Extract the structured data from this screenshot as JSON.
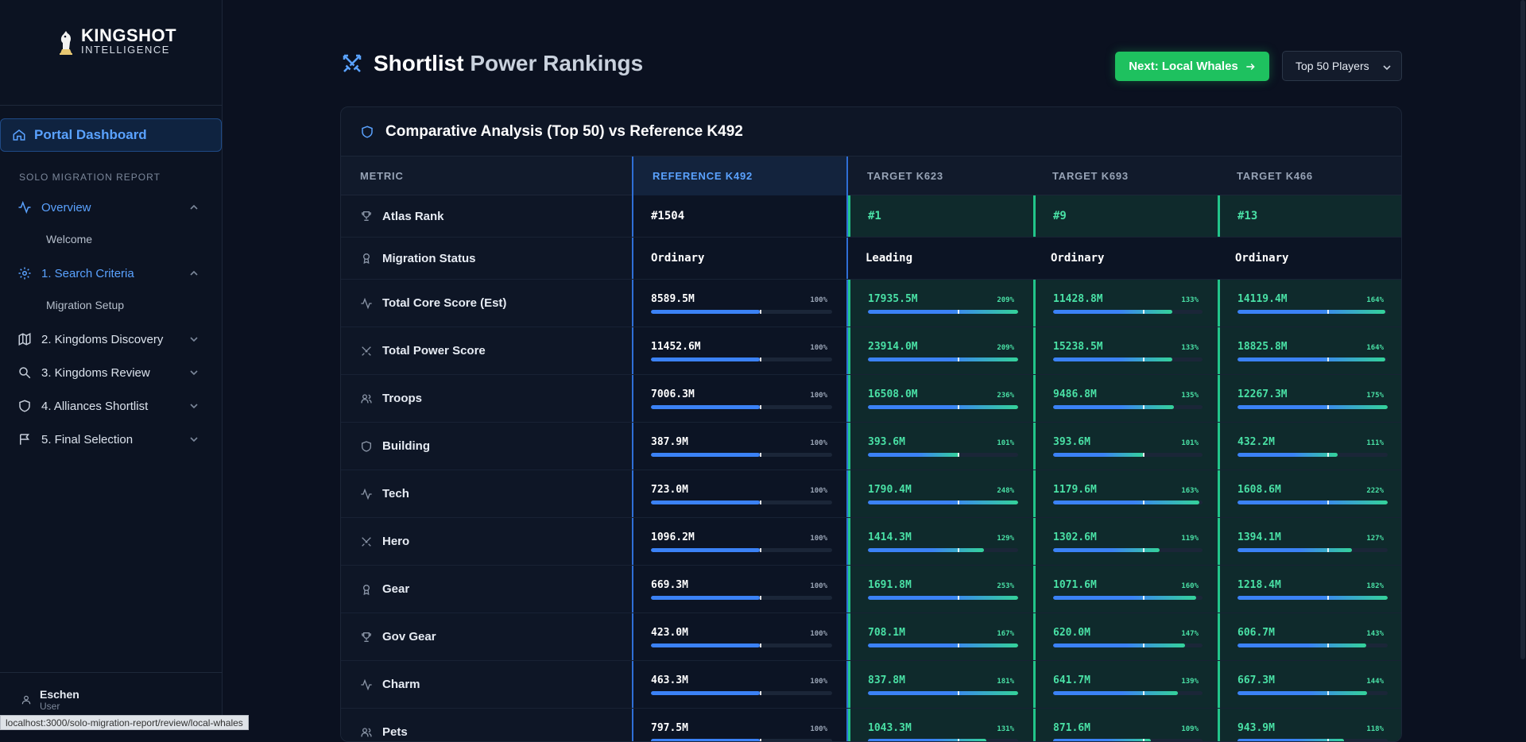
{
  "brand": {
    "line1": "KINGSHOT",
    "line2": "INTELLIGENCE"
  },
  "sidebar": {
    "portal_label": "Portal Dashboard",
    "section_label": "SOLO MIGRATION REPORT",
    "items": [
      {
        "label": "Overview",
        "sub": "Welcome",
        "icon": "activity-icon",
        "active": true,
        "expanded": true
      },
      {
        "label": "1. Search Criteria",
        "sub": "Migration Setup",
        "icon": "gear-icon",
        "active": true,
        "expanded": true
      },
      {
        "label": "2. Kingdoms Discovery",
        "icon": "map-icon"
      },
      {
        "label": "3. Kingdoms Review",
        "icon": "search-icon"
      },
      {
        "label": "4. Alliances Shortlist",
        "icon": "shield-icon"
      },
      {
        "label": "5. Final Selection",
        "icon": "flag-icon"
      }
    ],
    "user": {
      "name": "Eschen",
      "role": "User"
    }
  },
  "status_url": "localhost:3000/solo-migration-report/review/local-whales",
  "header": {
    "title_main": "Shortlist",
    "title_rest": "Power Rankings",
    "next_button": "Next: Local Whales",
    "select_value": "Top 50 Players"
  },
  "card": {
    "title": "Comparative Analysis (Top 50) vs Reference K492",
    "columns": [
      "METRIC",
      "REFERENCE K492",
      "TARGET K623",
      "TARGET K693",
      "TARGET K466"
    ],
    "rows": [
      {
        "metric": "Atlas Rank",
        "icon": "trophy-icon",
        "kind": "text",
        "ref": "#1504",
        "targets": [
          {
            "v": "#1",
            "hi": true
          },
          {
            "v": "#9",
            "hi": true
          },
          {
            "v": "#13",
            "hi": true
          }
        ]
      },
      {
        "metric": "Migration Status",
        "icon": "medal-icon",
        "kind": "text",
        "ref": "Ordinary",
        "targets": [
          {
            "v": "Leading",
            "hi": false
          },
          {
            "v": "Ordinary",
            "hi": false
          },
          {
            "v": "Ordinary",
            "hi": false
          }
        ]
      },
      {
        "metric": "Total Core Score (Est)",
        "icon": "activity-icon",
        "kind": "bar",
        "ref": {
          "v": "8589.5M",
          "p": "100%",
          "r": 1.0
        },
        "targets": [
          {
            "v": "17935.5M",
            "p": "209%",
            "r": 2.09
          },
          {
            "v": "11428.8M",
            "p": "133%",
            "r": 1.33
          },
          {
            "v": "14119.4M",
            "p": "164%",
            "r": 1.64
          }
        ]
      },
      {
        "metric": "Total Power Score",
        "icon": "swords-icon",
        "kind": "bar",
        "ref": {
          "v": "11452.6M",
          "p": "100%",
          "r": 1.0
        },
        "targets": [
          {
            "v": "23914.0M",
            "p": "209%",
            "r": 2.09
          },
          {
            "v": "15238.5M",
            "p": "133%",
            "r": 1.33
          },
          {
            "v": "18825.8M",
            "p": "164%",
            "r": 1.64
          }
        ]
      },
      {
        "metric": "Troops",
        "icon": "users-icon",
        "kind": "bar",
        "ref": {
          "v": "7006.3M",
          "p": "100%",
          "r": 1.0
        },
        "targets": [
          {
            "v": "16508.0M",
            "p": "236%",
            "r": 2.36
          },
          {
            "v": "9486.8M",
            "p": "135%",
            "r": 1.35
          },
          {
            "v": "12267.3M",
            "p": "175%",
            "r": 1.75
          }
        ]
      },
      {
        "metric": "Building",
        "icon": "shield-icon",
        "kind": "bar",
        "ref": {
          "v": "387.9M",
          "p": "100%",
          "r": 1.0
        },
        "targets": [
          {
            "v": "393.6M",
            "p": "101%",
            "r": 1.01
          },
          {
            "v": "393.6M",
            "p": "101%",
            "r": 1.01
          },
          {
            "v": "432.2M",
            "p": "111%",
            "r": 1.11
          }
        ]
      },
      {
        "metric": "Tech",
        "icon": "activity-icon",
        "kind": "bar",
        "ref": {
          "v": "723.0M",
          "p": "100%",
          "r": 1.0
        },
        "targets": [
          {
            "v": "1790.4M",
            "p": "248%",
            "r": 2.48
          },
          {
            "v": "1179.6M",
            "p": "163%",
            "r": 1.63
          },
          {
            "v": "1608.6M",
            "p": "222%",
            "r": 2.22
          }
        ]
      },
      {
        "metric": "Hero",
        "icon": "swords-icon",
        "kind": "bar",
        "ref": {
          "v": "1096.2M",
          "p": "100%",
          "r": 1.0
        },
        "targets": [
          {
            "v": "1414.3M",
            "p": "129%",
            "r": 1.29
          },
          {
            "v": "1302.6M",
            "p": "119%",
            "r": 1.19
          },
          {
            "v": "1394.1M",
            "p": "127%",
            "r": 1.27
          }
        ]
      },
      {
        "metric": "Gear",
        "icon": "medal-icon",
        "kind": "bar",
        "ref": {
          "v": "669.3M",
          "p": "100%",
          "r": 1.0
        },
        "targets": [
          {
            "v": "1691.8M",
            "p": "253%",
            "r": 2.53
          },
          {
            "v": "1071.6M",
            "p": "160%",
            "r": 1.6
          },
          {
            "v": "1218.4M",
            "p": "182%",
            "r": 1.82
          }
        ]
      },
      {
        "metric": "Gov Gear",
        "icon": "trophy-icon",
        "kind": "bar",
        "ref": {
          "v": "423.0M",
          "p": "100%",
          "r": 1.0
        },
        "targets": [
          {
            "v": "708.1M",
            "p": "167%",
            "r": 1.67
          },
          {
            "v": "620.0M",
            "p": "147%",
            "r": 1.47
          },
          {
            "v": "606.7M",
            "p": "143%",
            "r": 1.43
          }
        ]
      },
      {
        "metric": "Charm",
        "icon": "activity-icon",
        "kind": "bar",
        "ref": {
          "v": "463.3M",
          "p": "100%",
          "r": 1.0
        },
        "targets": [
          {
            "v": "837.8M",
            "p": "181%",
            "r": 1.81
          },
          {
            "v": "641.7M",
            "p": "139%",
            "r": 1.39
          },
          {
            "v": "667.3M",
            "p": "144%",
            "r": 1.44
          }
        ]
      },
      {
        "metric": "Pets",
        "icon": "users-icon",
        "kind": "bar",
        "ref": {
          "v": "797.5M",
          "p": "100%",
          "r": 1.0
        },
        "targets": [
          {
            "v": "1043.3M",
            "p": "131%",
            "r": 1.31
          },
          {
            "v": "871.6M",
            "p": "109%",
            "r": 1.09
          },
          {
            "v": "943.9M",
            "p": "118%",
            "r": 1.18
          }
        ]
      }
    ]
  },
  "colors": {
    "accent_blue": "#3b82f6",
    "accent_green": "#1ec15f",
    "highlight_teal": "#22c58a",
    "bg": "#0b1120"
  }
}
